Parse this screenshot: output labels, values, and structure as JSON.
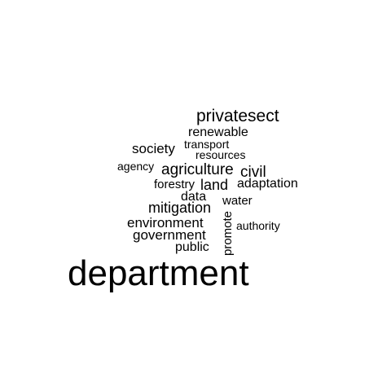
{
  "words": [
    {
      "id": "privatesect",
      "text": "privatesect",
      "weight": 5
    },
    {
      "id": "renewable",
      "text": "renewable",
      "weight": 3
    },
    {
      "id": "transport",
      "text": "transport",
      "weight": 2
    },
    {
      "id": "society",
      "text": "society",
      "weight": 3
    },
    {
      "id": "resources",
      "text": "resources",
      "weight": 2
    },
    {
      "id": "agency",
      "text": "agency",
      "weight": 2
    },
    {
      "id": "agriculture",
      "text": "agriculture",
      "weight": 4
    },
    {
      "id": "civil",
      "text": "civil",
      "weight": 4
    },
    {
      "id": "forestry",
      "text": "forestry",
      "weight": 2
    },
    {
      "id": "land",
      "text": "land",
      "weight": 4
    },
    {
      "id": "adaptation",
      "text": "adaptation",
      "weight": 3
    },
    {
      "id": "data",
      "text": "data",
      "weight": 3
    },
    {
      "id": "water",
      "text": "water",
      "weight": 2
    },
    {
      "id": "mitigation",
      "text": "mitigation",
      "weight": 4
    },
    {
      "id": "environment",
      "text": "environment",
      "weight": 4
    },
    {
      "id": "promote",
      "text": "promote",
      "weight": 2
    },
    {
      "id": "authority",
      "text": "authority",
      "weight": 2
    },
    {
      "id": "government",
      "text": "government",
      "weight": 4
    },
    {
      "id": "public",
      "text": "public",
      "weight": 3
    },
    {
      "id": "department",
      "text": "department",
      "weight": 10
    }
  ]
}
